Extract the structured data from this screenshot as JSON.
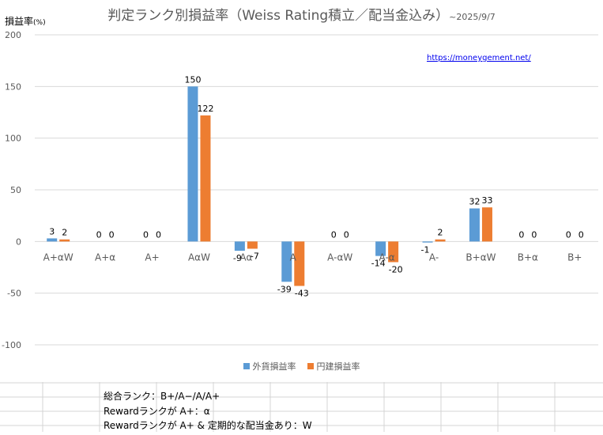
{
  "chart_data": {
    "type": "bar",
    "title": "判定ランク別損益率（Weiss Rating積立／配当金込み）",
    "title_date": "~2025/9/7",
    "ylabel": "損益率",
    "ylabel_unit": "(%)",
    "annotation_url": "https://moneygement.net/",
    "categories": [
      "A+αW",
      "A+α",
      "A+",
      "AαW",
      "Aα",
      "A",
      "A-αW",
      "A-α",
      "A-",
      "B+αW",
      "B+α",
      "B+"
    ],
    "series": [
      {
        "name": "外貨損益率",
        "color": "#5b9bd5",
        "values": [
          3,
          0,
          0,
          150,
          -9,
          -39,
          0,
          -14,
          -1,
          32,
          0,
          0
        ]
      },
      {
        "name": "円建損益率",
        "color": "#ed7d31",
        "values": [
          2,
          0,
          0,
          122,
          -7,
          -43,
          0,
          -20,
          2,
          33,
          0,
          0
        ]
      }
    ],
    "ylim": [
      -100,
      200
    ],
    "yticks": [
      -100,
      -50,
      0,
      50,
      100,
      150,
      200
    ],
    "grid": true,
    "legend_position": "bottom"
  },
  "notes": [
    "総合ランク：B+/A−/A/A+",
    "Rewardランクが A+：α",
    "Rewardランクが A+ & 定期的な配当金あり：W"
  ]
}
